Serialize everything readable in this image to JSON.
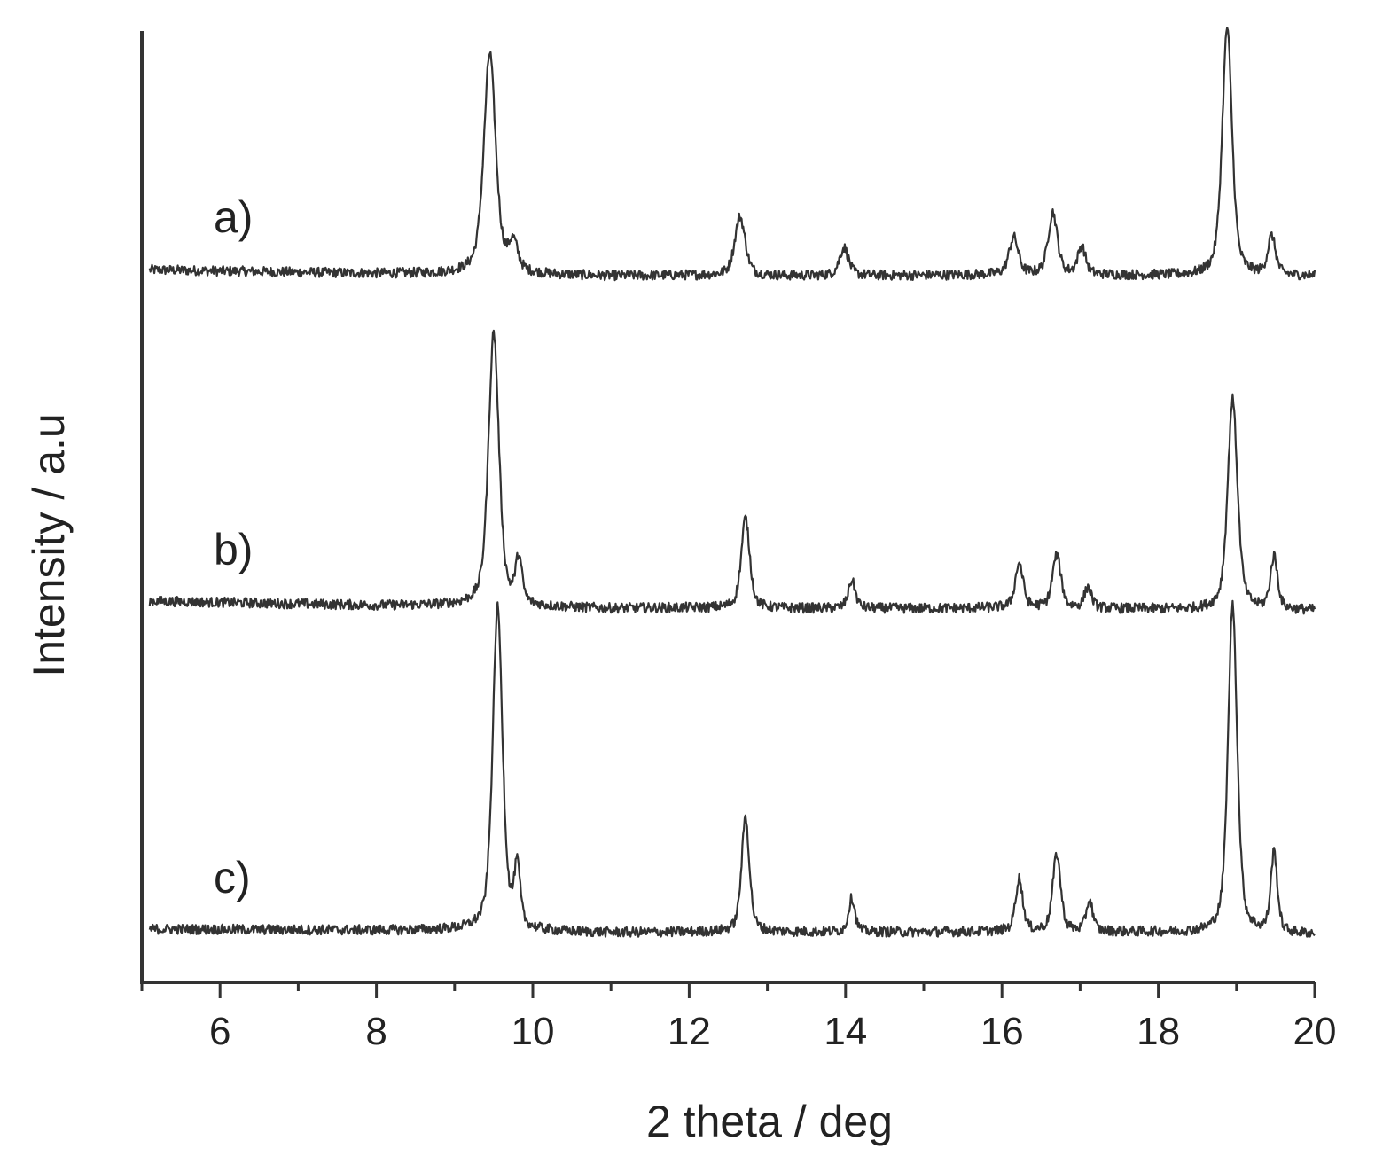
{
  "chart_data": {
    "type": "line",
    "xlabel": "2 theta / deg",
    "ylabel": "Intensity / a.u",
    "xlim": [
      5,
      20
    ],
    "x_ticks": [
      6,
      8,
      10,
      12,
      14,
      16,
      18,
      20
    ],
    "x_minor_step": 1,
    "y_ticks_shown": false,
    "grid": false,
    "line_color": "#333333",
    "series": [
      {
        "name": "a)",
        "baseline": [
          [
            5.1,
            0.43
          ],
          [
            8.0,
            0.37
          ],
          [
            9.0,
            0.37
          ],
          [
            11.0,
            0.33
          ],
          [
            12.0,
            0.34
          ],
          [
            13.0,
            0.33
          ],
          [
            15.0,
            0.34
          ],
          [
            16.0,
            0.35
          ],
          [
            18.0,
            0.34
          ],
          [
            19.0,
            0.33
          ],
          [
            20.0,
            0.33
          ]
        ],
        "peaks": [
          {
            "x": 9.45,
            "height": 3.55,
            "width": 0.09
          },
          {
            "x": 9.75,
            "height": 0.45,
            "width": 0.07
          },
          {
            "x": 12.65,
            "height": 0.95,
            "width": 0.08
          },
          {
            "x": 13.98,
            "height": 0.45,
            "width": 0.07
          },
          {
            "x": 16.15,
            "height": 0.6,
            "width": 0.07
          },
          {
            "x": 16.65,
            "height": 1.0,
            "width": 0.07
          },
          {
            "x": 17.02,
            "height": 0.45,
            "width": 0.06
          },
          {
            "x": 18.88,
            "height": 4.0,
            "width": 0.075
          },
          {
            "x": 19.45,
            "height": 0.62,
            "width": 0.06
          }
        ]
      },
      {
        "name": "b)",
        "baseline": [
          [
            5.1,
            0.45
          ],
          [
            8.0,
            0.38
          ],
          [
            9.0,
            0.38
          ],
          [
            11.0,
            0.33
          ],
          [
            12.0,
            0.34
          ],
          [
            13.0,
            0.33
          ],
          [
            15.0,
            0.33
          ],
          [
            16.0,
            0.34
          ],
          [
            18.0,
            0.32
          ],
          [
            19.0,
            0.3
          ],
          [
            20.0,
            0.3
          ]
        ],
        "peaks": [
          {
            "x": 9.5,
            "height": 4.4,
            "width": 0.08
          },
          {
            "x": 9.82,
            "height": 0.72,
            "width": 0.05
          },
          {
            "x": 12.72,
            "height": 1.45,
            "width": 0.065
          },
          {
            "x": 14.08,
            "height": 0.45,
            "width": 0.055
          },
          {
            "x": 16.22,
            "height": 0.72,
            "width": 0.06
          },
          {
            "x": 16.7,
            "height": 0.85,
            "width": 0.065
          },
          {
            "x": 17.1,
            "height": 0.33,
            "width": 0.055
          },
          {
            "x": 18.95,
            "height": 3.4,
            "width": 0.075
          },
          {
            "x": 19.48,
            "height": 0.85,
            "width": 0.055
          }
        ]
      },
      {
        "name": "c)",
        "baseline": [
          [
            5.1,
            0.35
          ],
          [
            8.0,
            0.33
          ],
          [
            9.0,
            0.33
          ],
          [
            11.0,
            0.29
          ],
          [
            12.0,
            0.3
          ],
          [
            13.0,
            0.3
          ],
          [
            15.0,
            0.3
          ],
          [
            16.0,
            0.31
          ],
          [
            18.0,
            0.3
          ],
          [
            19.0,
            0.27
          ],
          [
            20.0,
            0.27
          ]
        ],
        "peaks": [
          {
            "x": 9.55,
            "height": 5.2,
            "width": 0.075
          },
          {
            "x": 9.8,
            "height": 0.95,
            "width": 0.045
          },
          {
            "x": 12.72,
            "height": 1.85,
            "width": 0.06
          },
          {
            "x": 14.08,
            "height": 0.55,
            "width": 0.05
          },
          {
            "x": 16.22,
            "height": 0.85,
            "width": 0.055
          },
          {
            "x": 16.7,
            "height": 1.25,
            "width": 0.06
          },
          {
            "x": 17.12,
            "height": 0.5,
            "width": 0.05
          },
          {
            "x": 18.95,
            "height": 5.3,
            "width": 0.07
          },
          {
            "x": 19.48,
            "height": 1.3,
            "width": 0.05
          }
        ]
      }
    ]
  }
}
